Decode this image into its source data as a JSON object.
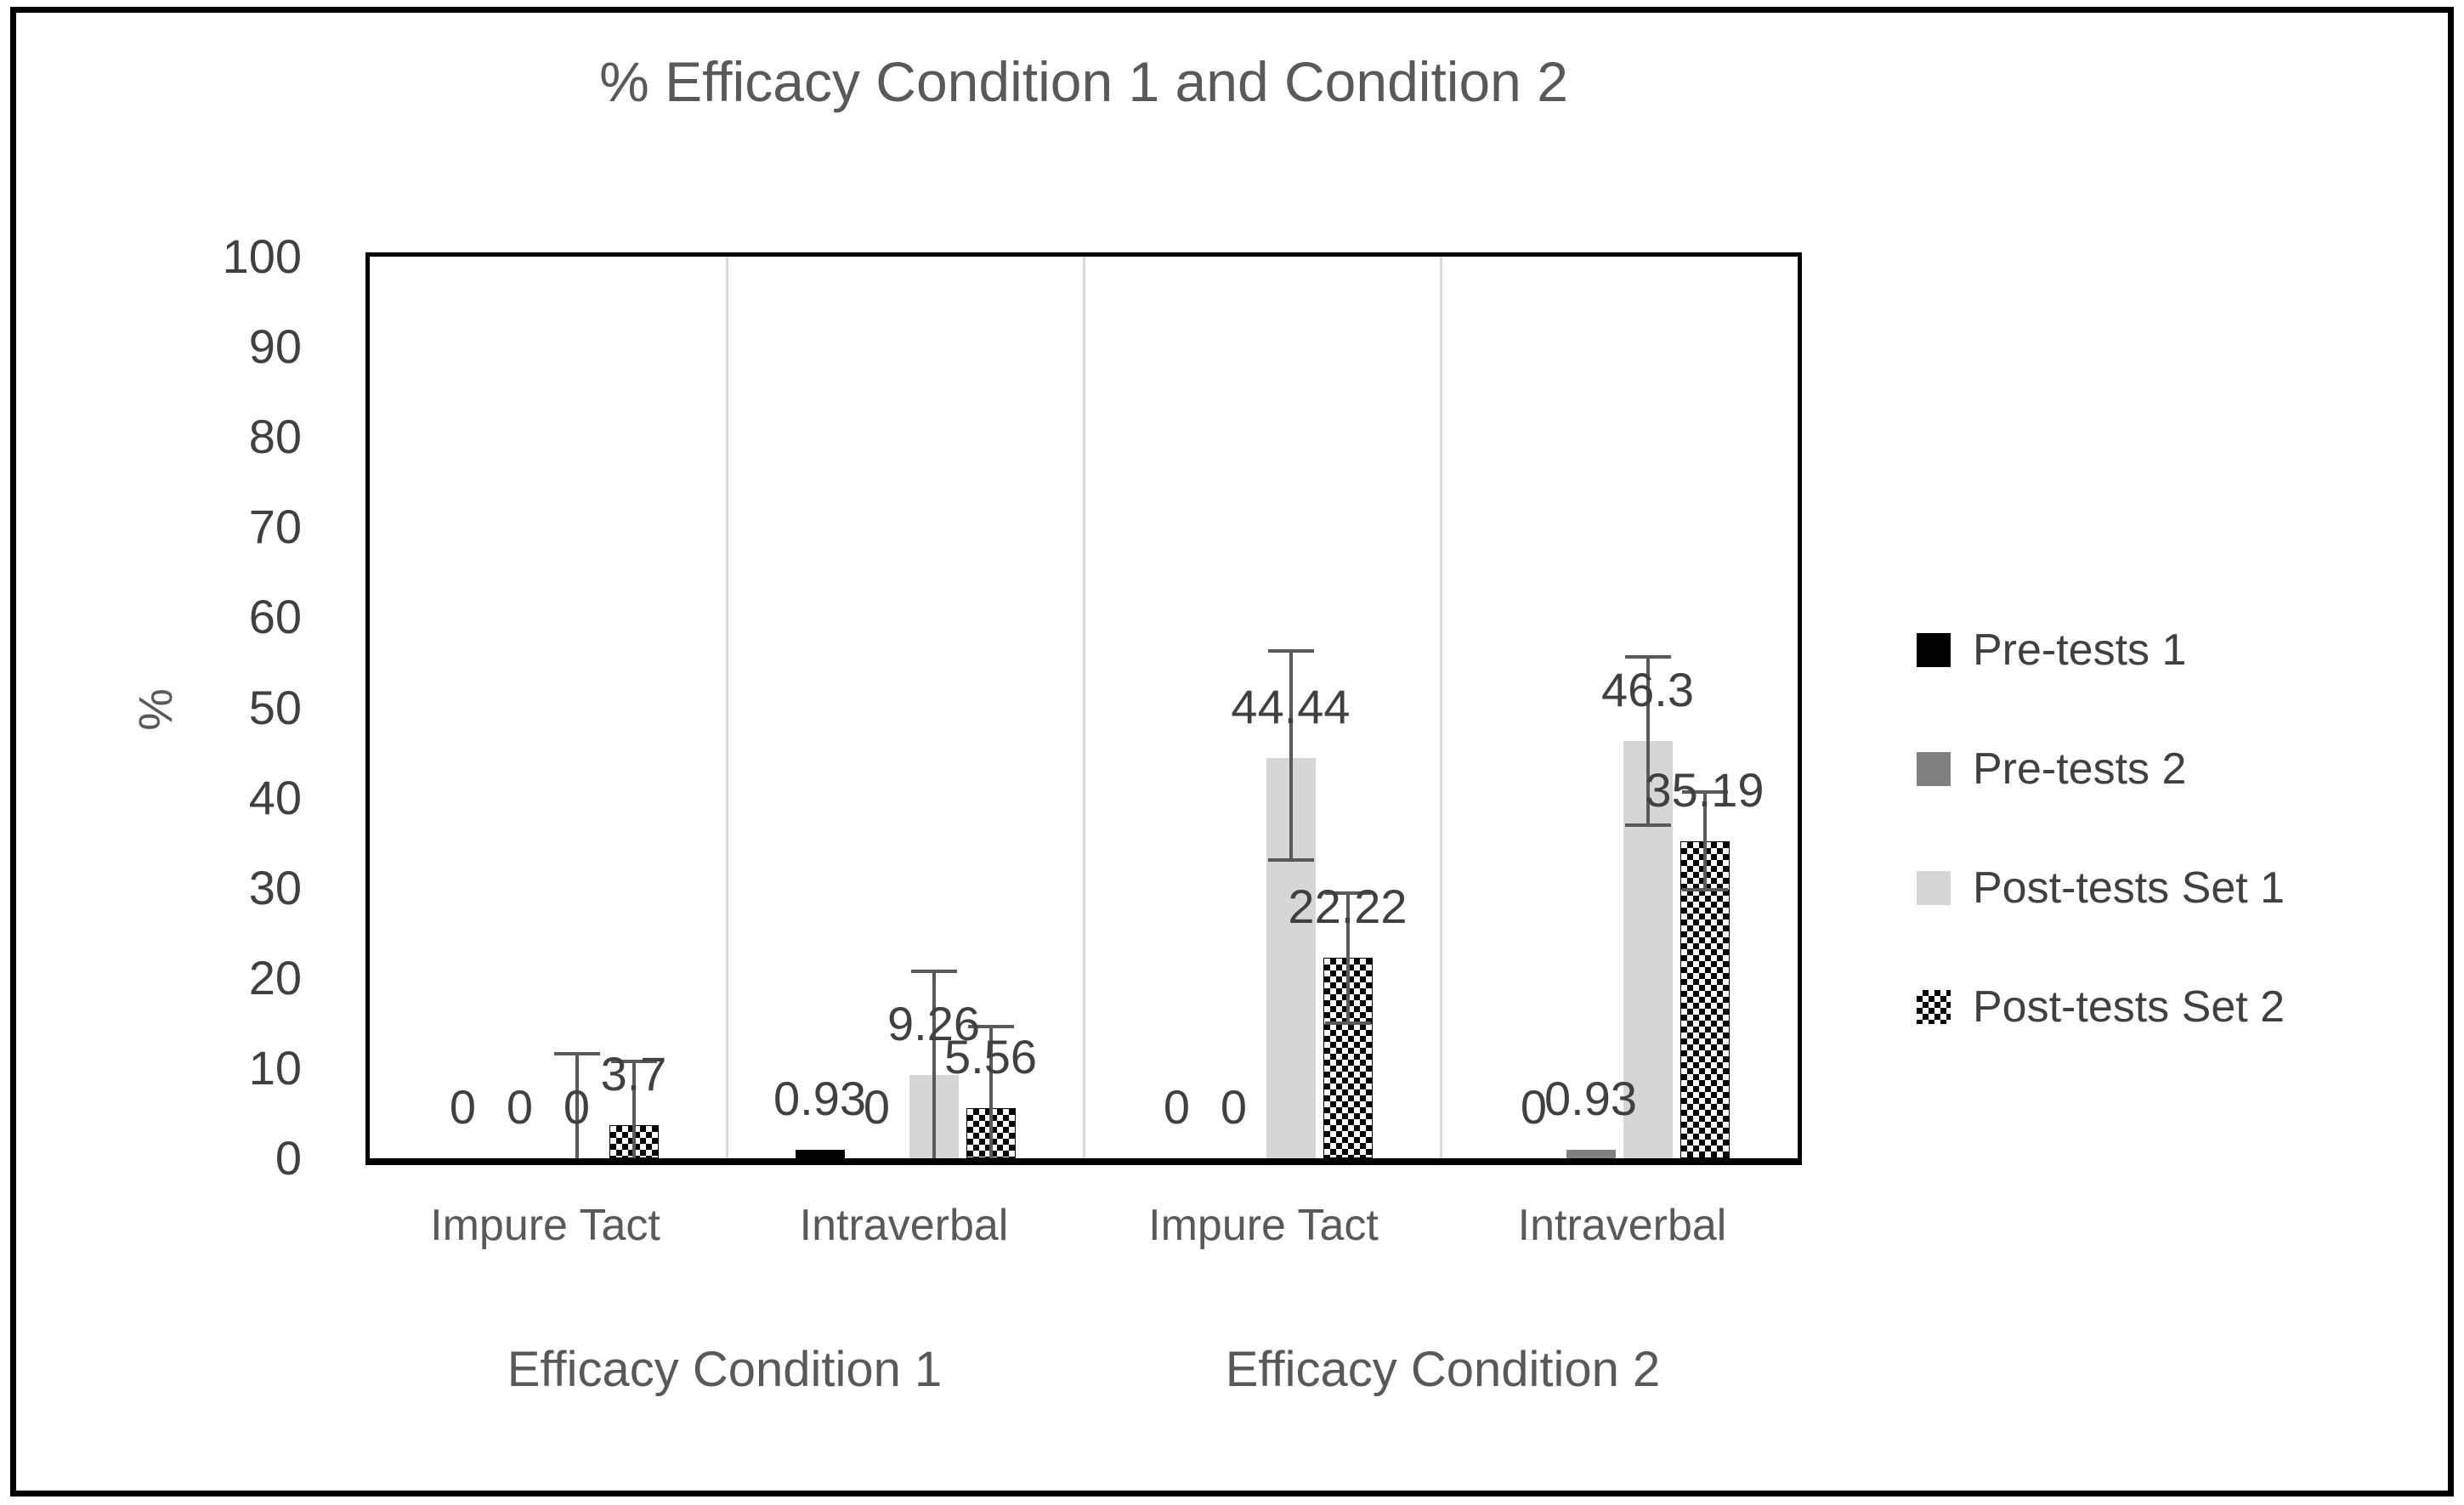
{
  "chart_data": {
    "type": "bar",
    "title": "% Efficacy Condition 1 and Condition 2",
    "ylabel": "%",
    "ylim": [
      0,
      100
    ],
    "ytick_step": 10,
    "yticks": [
      0,
      10,
      20,
      30,
      40,
      50,
      60,
      70,
      80,
      90,
      100
    ],
    "grid": "vertical category separator lines only",
    "legend_position": "right",
    "group_labels": [
      "Impure Tact",
      "Intraverbal",
      "Impure Tact",
      "Intraverbal"
    ],
    "outer_group_labels": [
      "Efficacy Condition 1",
      "Efficacy Condition 2"
    ],
    "series": [
      {
        "name": "Pre-tests 1",
        "style": "solid",
        "color": "#000000",
        "values": [
          0,
          0.93,
          0,
          0
        ],
        "labels": [
          "0",
          "0.93",
          "0",
          "0"
        ]
      },
      {
        "name": "Pre-tests 2",
        "style": "solid",
        "color": "#808080",
        "values": [
          0,
          0,
          0,
          0.93
        ],
        "labels": [
          "0",
          "0",
          "0",
          "0.93"
        ]
      },
      {
        "name": "Post-tests Set 1",
        "style": "solid",
        "color": "#d6d6d6",
        "values": [
          0,
          9.26,
          44.44,
          46.3
        ],
        "labels": [
          "0",
          "9.26",
          "44.44",
          "46.3"
        ]
      },
      {
        "name": "Post-tests Set 2",
        "style": "checker",
        "color": "#000000",
        "values": [
          3.7,
          5.56,
          22.22,
          35.19
        ],
        "labels": [
          "3.7",
          "5.56",
          "22.22",
          "35.19"
        ]
      }
    ],
    "error_bars": [
      {
        "series": 2,
        "group": 0,
        "low": 0,
        "high": 11.8,
        "cap_low": false
      },
      {
        "series": 3,
        "group": 0,
        "low": 0,
        "high": 10.9,
        "cap_low": false
      },
      {
        "series": 2,
        "group": 1,
        "low": 0,
        "high": 20.9,
        "cap_low": false
      },
      {
        "series": 3,
        "group": 1,
        "low": 0,
        "high": 14.8,
        "cap_low": false
      },
      {
        "series": 2,
        "group": 2,
        "low": 32.9,
        "high": 56.5,
        "cap_low": true
      },
      {
        "series": 3,
        "group": 2,
        "low": 14.8,
        "high": 29.6,
        "cap_low": true
      },
      {
        "series": 2,
        "group": 3,
        "low": 36.8,
        "high": 55.8,
        "cap_low": true
      },
      {
        "series": 3,
        "group": 3,
        "low": 29.6,
        "high": 40.8,
        "cap_low": true
      }
    ],
    "colors": {
      "title_text": "#595959",
      "axis_text": "#404040",
      "error_bar": "#595959",
      "separator": "#d9d9d9",
      "frame": "#000000"
    }
  }
}
